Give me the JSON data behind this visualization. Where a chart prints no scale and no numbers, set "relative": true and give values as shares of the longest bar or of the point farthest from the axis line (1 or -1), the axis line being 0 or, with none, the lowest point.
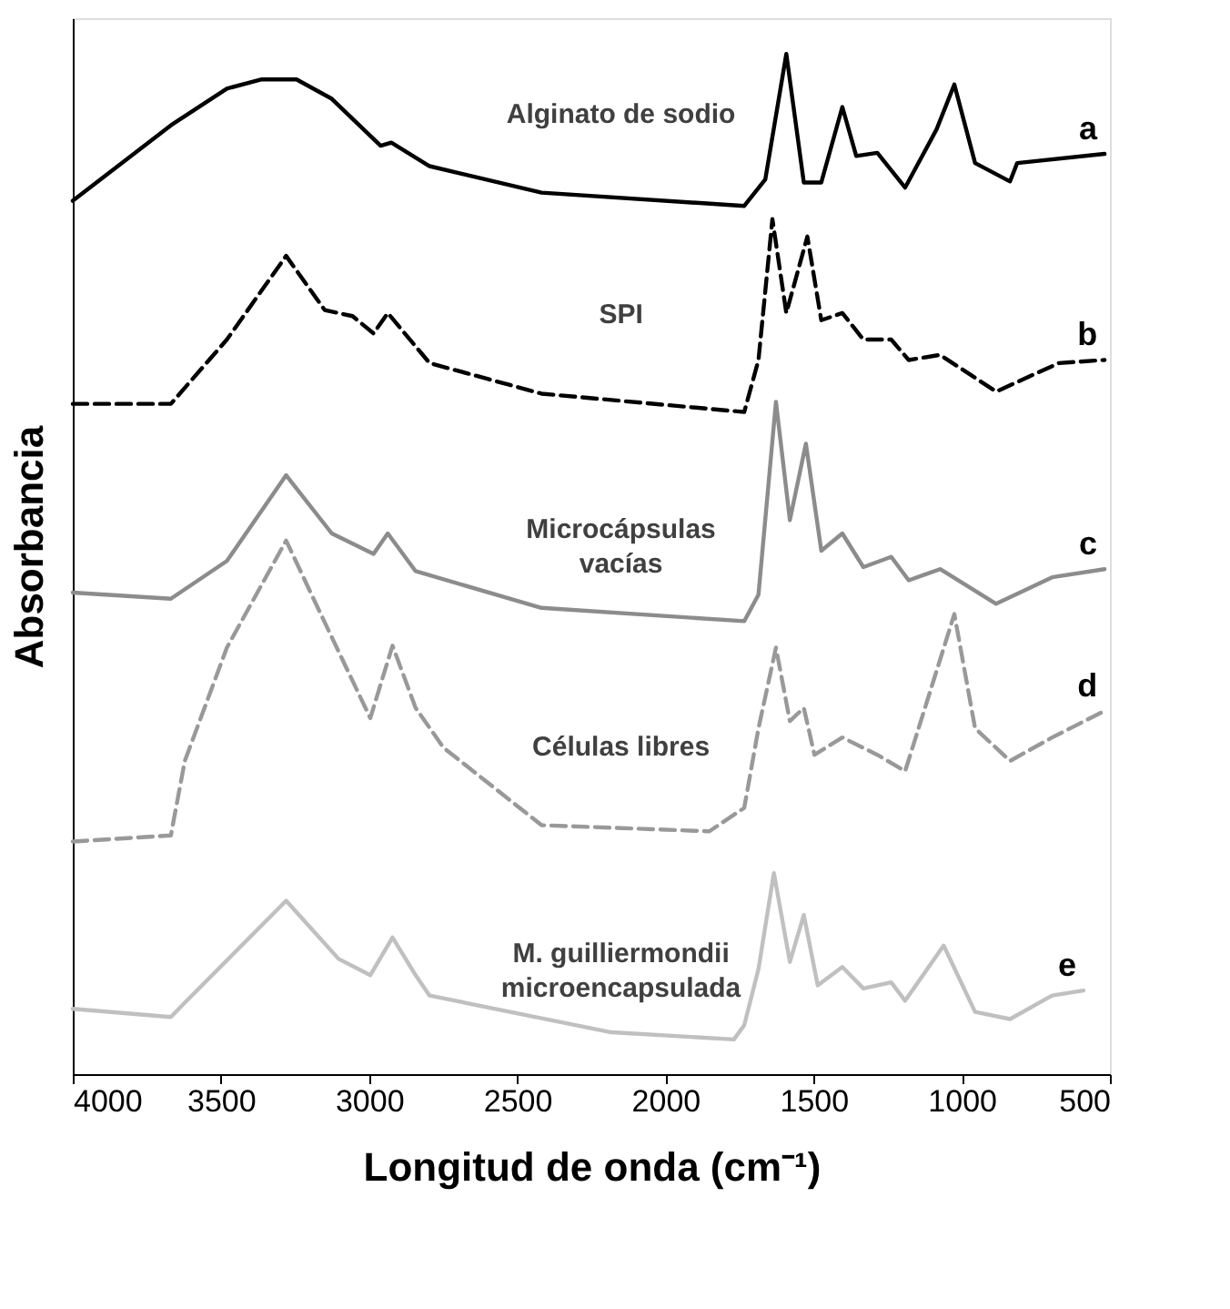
{
  "chart_data": {
    "type": "line",
    "relative": true,
    "xlabel": "Longitud de onda (cm⁻¹)",
    "ylabel": "Absorbancia",
    "xlim": [
      4000,
      500
    ],
    "xticks": [
      4000,
      3500,
      3000,
      2500,
      2000,
      1500,
      1000,
      500
    ],
    "tick_labels": "x",
    "grid": false,
    "legend": false,
    "series": [
      {
        "name": "Alginato de sodio",
        "color": "#000000",
        "line_style": "solid",
        "x": [
          4000,
          3669,
          3480,
          3362,
          3245,
          3126,
          2961,
          2925,
          2796,
          2418,
          1734,
          1663,
          1592,
          1533,
          1474,
          1403,
          1356,
          1285,
          1191,
          1085,
          1025,
          955,
          837,
          813,
          518
        ],
        "values": [
          0.856,
          0.93,
          0.966,
          0.975,
          0.975,
          0.956,
          0.91,
          0.913,
          0.89,
          0.864,
          0.851,
          0.877,
          1.0,
          0.874,
          0.874,
          0.948,
          0.9,
          0.903,
          0.869,
          0.926,
          0.97,
          0.893,
          0.875,
          0.893,
          0.902
        ]
      },
      {
        "name": "SPI",
        "color": "#000000",
        "line_style": "dashed",
        "x": [
          4000,
          3669,
          3480,
          3280,
          3150,
          3056,
          2985,
          2937,
          2796,
          2418,
          1734,
          1686,
          1639,
          1592,
          1521,
          1474,
          1403,
          1332,
          1238,
          1179,
          1073,
          884,
          672,
          518
        ],
        "values": [
          0.657,
          0.657,
          0.72,
          0.802,
          0.749,
          0.743,
          0.726,
          0.746,
          0.697,
          0.667,
          0.649,
          0.7,
          0.838,
          0.746,
          0.821,
          0.739,
          0.746,
          0.72,
          0.72,
          0.7,
          0.705,
          0.669,
          0.697,
          0.7
        ]
      },
      {
        "name": "Microcápsulas vacías",
        "color": "#8c8c8c",
        "line_style": "solid",
        "x": [
          4000,
          3669,
          3480,
          3280,
          3126,
          2985,
          2937,
          2843,
          2418,
          1734,
          1686,
          1627,
          1580,
          1526,
          1474,
          1403,
          1332,
          1238,
          1179,
          1073,
          884,
          695,
          518
        ],
        "values": [
          0.472,
          0.466,
          0.503,
          0.587,
          0.53,
          0.51,
          0.53,
          0.493,
          0.457,
          0.444,
          0.47,
          0.659,
          0.543,
          0.618,
          0.513,
          0.53,
          0.497,
          0.507,
          0.484,
          0.495,
          0.461,
          0.487,
          0.495
        ]
      },
      {
        "name": "Células libres",
        "color": "#999999",
        "line_style": "dashed",
        "x": [
          4000,
          3669,
          3622,
          3480,
          3280,
          3173,
          2996,
          2921,
          2843,
          2749,
          2418,
          1852,
          1734,
          1686,
          1627,
          1580,
          1533,
          1497,
          1403,
          1285,
          1191,
          1096,
          1025,
          955,
          837,
          695,
          518
        ],
        "values": [
          0.228,
          0.234,
          0.307,
          0.418,
          0.523,
          0.457,
          0.349,
          0.42,
          0.359,
          0.32,
          0.244,
          0.238,
          0.261,
          0.339,
          0.418,
          0.346,
          0.359,
          0.313,
          0.33,
          0.313,
          0.297,
          0.385,
          0.451,
          0.339,
          0.307,
          0.33,
          0.356
        ]
      },
      {
        "name": "M. guilliermondii microencapsulada",
        "color": "#c0c0c0",
        "line_style": "solid",
        "x": [
          4000,
          3669,
          3622,
          3280,
          3103,
          2996,
          2921,
          2843,
          2796,
          2182,
          1769,
          1734,
          1686,
          1634,
          1580,
          1533,
          1486,
          1403,
          1332,
          1238,
          1191,
          1061,
          955,
          837,
          695,
          589
        ],
        "values": [
          0.064,
          0.056,
          0.07,
          0.17,
          0.113,
          0.097,
          0.134,
          0.097,
          0.077,
          0.041,
          0.034,
          0.048,
          0.103,
          0.197,
          0.11,
          0.156,
          0.087,
          0.105,
          0.084,
          0.09,
          0.072,
          0.126,
          0.061,
          0.054,
          0.077,
          0.082
        ]
      }
    ],
    "annotations": [
      "a",
      "b",
      "c",
      "d",
      "e"
    ]
  }
}
